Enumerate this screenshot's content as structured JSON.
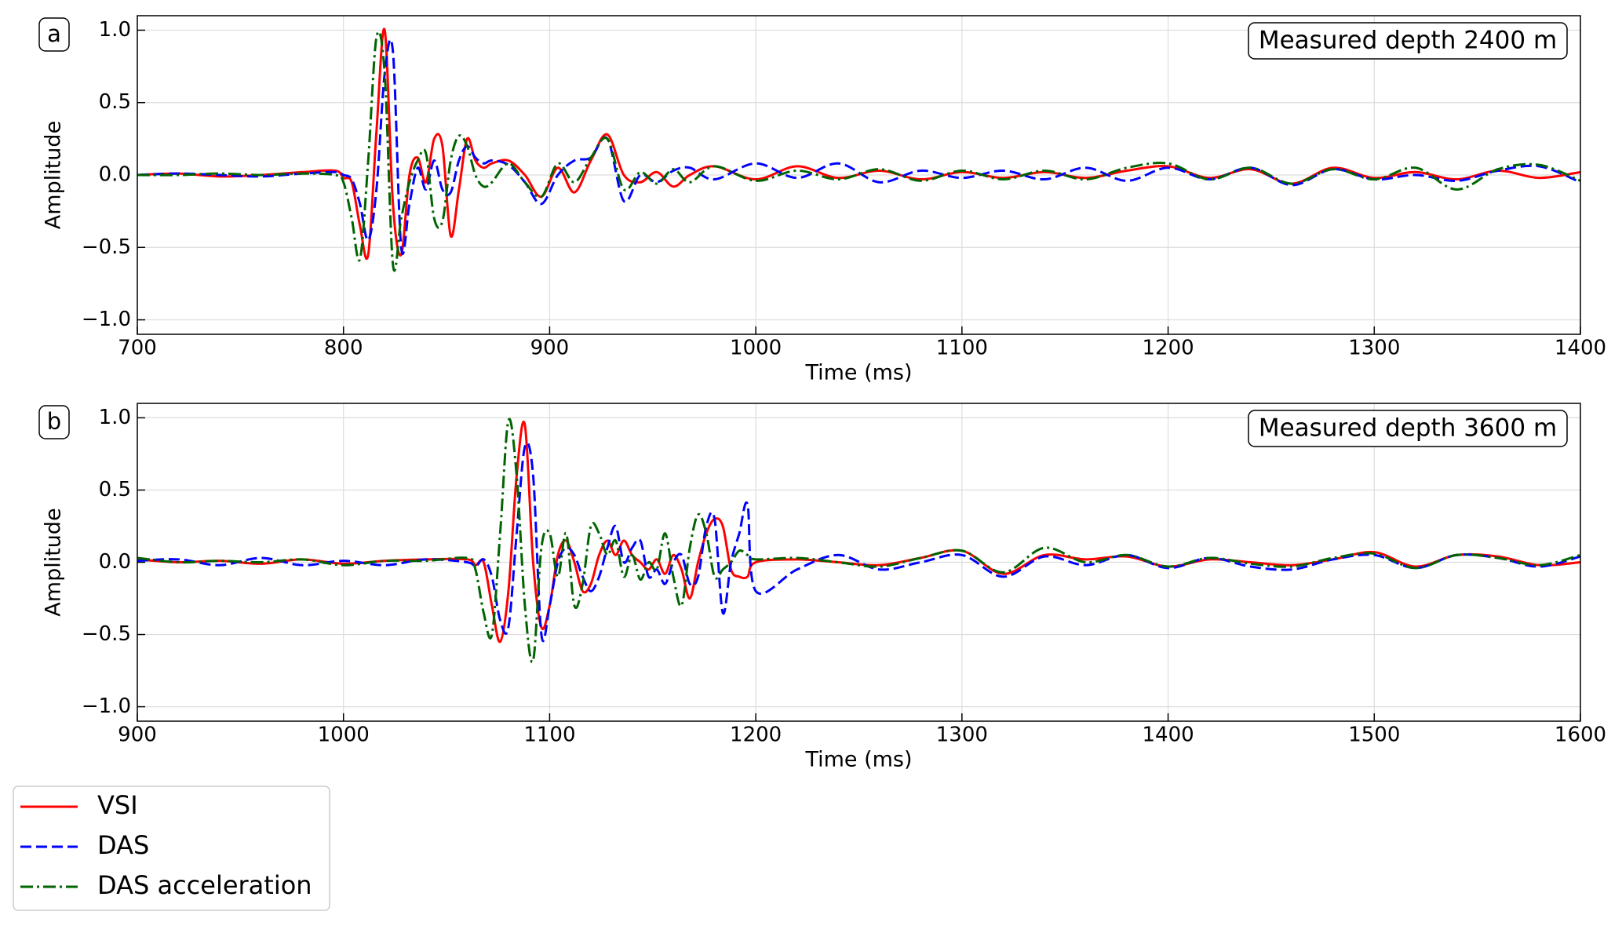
{
  "chart_data": [
    {
      "type": "line",
      "panel_label": "a",
      "annotation": "Measured depth 2400 m",
      "xlabel": "Time (ms)",
      "ylabel": "Amplitude",
      "grid": true,
      "x": [
        700,
        720,
        740,
        760,
        780,
        796,
        800,
        804,
        808,
        812,
        816,
        820,
        824,
        828,
        832,
        836,
        840,
        844,
        848,
        852,
        856,
        860,
        864,
        868,
        872,
        880,
        888,
        896,
        904,
        912,
        920,
        928,
        936,
        944,
        952,
        960,
        968,
        980,
        1000,
        1020,
        1040,
        1060,
        1080,
        1100,
        1120,
        1140,
        1160,
        1180,
        1200,
        1220,
        1240,
        1260,
        1280,
        1300,
        1320,
        1340,
        1360,
        1380,
        1400
      ],
      "series": [
        {
          "name": "VSI",
          "color": "#ff0000",
          "linestyle": "solid",
          "values": [
            0,
            0.01,
            -0.01,
            0,
            0.02,
            0.03,
            -0.02,
            -0.05,
            -0.35,
            -0.55,
            0.3,
            1.0,
            -0.2,
            -0.55,
            0.0,
            0.12,
            -0.05,
            0.25,
            0.2,
            -0.42,
            -0.1,
            0.25,
            0.1,
            0.05,
            0.08,
            0.1,
            0.0,
            -0.15,
            0.05,
            -0.12,
            0.1,
            0.28,
            0.0,
            -0.05,
            0.02,
            -0.08,
            0.0,
            0.06,
            -0.03,
            0.06,
            -0.02,
            0.03,
            -0.03,
            0.02,
            -0.02,
            0.02,
            -0.02,
            0.03,
            0.06,
            -0.02,
            0.04,
            -0.06,
            0.05,
            -0.02,
            0.02,
            -0.03,
            0.03,
            -0.02,
            0.02
          ]
        },
        {
          "name": "DAS",
          "color": "#0000ff",
          "linestyle": "dashed",
          "values": [
            0,
            0.01,
            0,
            -0.01,
            0.01,
            0.02,
            0.0,
            -0.03,
            -0.2,
            -0.45,
            -0.1,
            0.7,
            0.85,
            -0.5,
            -0.2,
            0.05,
            -0.1,
            0.1,
            -0.1,
            -0.12,
            0.1,
            0.2,
            0.12,
            0.08,
            0.1,
            0.07,
            -0.05,
            -0.2,
            0.0,
            0.1,
            0.12,
            0.25,
            -0.18,
            0.0,
            -0.05,
            0.03,
            0.05,
            -0.03,
            0.08,
            -0.02,
            0.08,
            -0.05,
            0.03,
            -0.02,
            0.03,
            -0.03,
            0.05,
            -0.04,
            0.05,
            -0.03,
            0.05,
            -0.07,
            0.04,
            -0.03,
            0.0,
            -0.04,
            0.03,
            0.06,
            -0.05
          ]
        },
        {
          "name": "DAS acceleration",
          "color": "#006400",
          "linestyle": "dashdot",
          "values": [
            0,
            0,
            0.01,
            0,
            0.01,
            0.0,
            -0.05,
            -0.3,
            -0.58,
            0.1,
            0.95,
            0.7,
            -0.62,
            -0.3,
            -0.05,
            0.1,
            0.15,
            -0.3,
            -0.32,
            0.1,
            0.27,
            0.2,
            0.0,
            -0.08,
            -0.05,
            0.08,
            -0.05,
            -0.15,
            0.08,
            -0.05,
            0.12,
            0.25,
            -0.1,
            0.02,
            -0.06,
            0.04,
            -0.05,
            0.06,
            -0.04,
            0.03,
            -0.03,
            0.04,
            -0.04,
            0.03,
            -0.03,
            0.03,
            -0.03,
            0.05,
            0.08,
            -0.03,
            0.05,
            -0.06,
            0.04,
            -0.03,
            0.05,
            -0.1,
            0.04,
            0.07,
            -0.04
          ]
        }
      ],
      "xlim": [
        700,
        1400
      ],
      "xticks": [
        700,
        800,
        900,
        1000,
        1100,
        1200,
        1300,
        1400
      ],
      "ylim": [
        -1.1,
        1.1
      ],
      "yticks": [
        {
          "value": -1,
          "label": "−1.0"
        },
        {
          "value": -0.5,
          "label": "−0.5"
        },
        {
          "value": 0,
          "label": "0.0"
        },
        {
          "value": 0.5,
          "label": "0.5"
        },
        {
          "value": 1,
          "label": "1.0"
        }
      ]
    },
    {
      "type": "line",
      "panel_label": "b",
      "annotation": "Measured depth 3600 m",
      "xlabel": "Time (ms)",
      "ylabel": "Amplitude",
      "grid": true,
      "x": [
        900,
        920,
        940,
        960,
        980,
        1000,
        1020,
        1040,
        1060,
        1064,
        1068,
        1072,
        1076,
        1080,
        1084,
        1088,
        1092,
        1096,
        1100,
        1104,
        1108,
        1112,
        1116,
        1120,
        1124,
        1128,
        1132,
        1136,
        1140,
        1144,
        1148,
        1152,
        1156,
        1160,
        1164,
        1168,
        1172,
        1176,
        1180,
        1184,
        1188,
        1192,
        1196,
        1200,
        1220,
        1240,
        1260,
        1280,
        1300,
        1320,
        1340,
        1360,
        1380,
        1400,
        1420,
        1440,
        1460,
        1480,
        1500,
        1520,
        1540,
        1560,
        1580,
        1600
      ],
      "series": [
        {
          "color": "#ff0000",
          "linestyle": "solid",
          "values": [
            0.02,
            0,
            0.01,
            -0.01,
            0.02,
            -0.01,
            0.01,
            0.02,
            0.02,
            -0.02,
            0.0,
            -0.3,
            -0.55,
            -0.2,
            0.6,
            0.95,
            0.0,
            -0.45,
            -0.3,
            0.05,
            0.15,
            0.0,
            -0.2,
            -0.15,
            0.05,
            0.15,
            0.05,
            0.15,
            0.05,
            0.0,
            -0.05,
            0.02,
            -0.08,
            0.05,
            -0.05,
            -0.25,
            0.0,
            0.2,
            0.3,
            0.25,
            -0.05,
            -0.1,
            -0.1,
            0.0,
            0.02,
            0.0,
            -0.02,
            0.03,
            0.08,
            -0.08,
            0.05,
            0.02,
            0.04,
            -0.03,
            0.02,
            0.0,
            -0.02,
            0.02,
            0.07,
            -0.03,
            0.05,
            0.04,
            -0.02,
            0.0
          ]
        },
        {
          "color": "#0000ff",
          "linestyle": "dashed",
          "values": [
            0.01,
            0.02,
            -0.02,
            0.03,
            -0.02,
            0.01,
            -0.02,
            0.02,
            0.0,
            -0.03,
            0.02,
            -0.1,
            -0.4,
            -0.45,
            0.2,
            0.8,
            0.6,
            -0.5,
            -0.3,
            0.0,
            0.1,
            0.05,
            -0.1,
            -0.2,
            -0.1,
            0.1,
            0.25,
            0.0,
            0.1,
            0.15,
            -0.1,
            -0.05,
            -0.15,
            0.0,
            0.05,
            -0.15,
            -0.1,
            0.25,
            0.3,
            -0.35,
            0.0,
            0.2,
            0.4,
            -0.2,
            -0.05,
            0.05,
            -0.05,
            0.0,
            0.05,
            -0.1,
            0.04,
            -0.02,
            0.05,
            -0.04,
            0.03,
            -0.03,
            -0.05,
            0.02,
            0.05,
            -0.04,
            0.05,
            0.03,
            -0.03,
            0.04
          ]
        },
        {
          "color": "#006400",
          "linestyle": "dashdot",
          "values": [
            0.03,
            0.0,
            0.01,
            0.0,
            0.02,
            -0.02,
            0.01,
            0.01,
            0.03,
            -0.05,
            -0.35,
            -0.5,
            0.2,
            0.98,
            0.6,
            -0.3,
            -0.68,
            0.1,
            0.2,
            -0.1,
            0.2,
            -0.3,
            -0.15,
            0.25,
            0.2,
            0.05,
            0.15,
            -0.1,
            0.05,
            -0.12,
            0.0,
            -0.05,
            0.2,
            -0.1,
            -0.3,
            0.1,
            0.33,
            0.2,
            -0.1,
            -0.05,
            0.0,
            0.08,
            0.05,
            0.02,
            0.03,
            0.0,
            -0.03,
            0.03,
            0.08,
            -0.07,
            0.1,
            0.0,
            0.05,
            -0.03,
            0.03,
            -0.01,
            -0.03,
            0.03,
            0.06,
            -0.04,
            0.05,
            0.03,
            -0.02,
            0.05
          ]
        }
      ],
      "xlim": [
        900,
        1600
      ],
      "xticks": [
        900,
        1000,
        1100,
        1200,
        1300,
        1400,
        1500,
        1600
      ],
      "ylim": [
        -1.1,
        1.1
      ],
      "yticks": [
        {
          "value": -1,
          "label": "−1.0"
        },
        {
          "value": -0.5,
          "label": "−0.5"
        },
        {
          "value": 0,
          "label": "0.0"
        },
        {
          "value": 0.5,
          "label": "0.5"
        },
        {
          "value": 1,
          "label": "1.0"
        }
      ]
    }
  ]
}
